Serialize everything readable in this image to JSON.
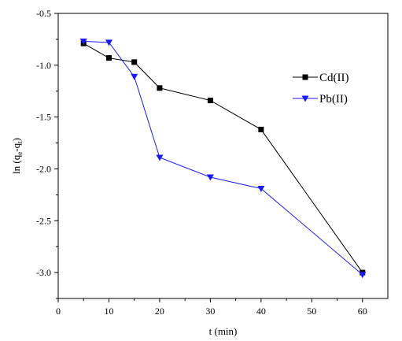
{
  "chart_data": {
    "type": "line",
    "xlabel": "t (min)",
    "ylabel": {
      "prefix": "ln (q",
      "sub1": "e",
      "mid": "-q",
      "sub2": "t",
      "suffix": ")"
    },
    "xlim": [
      0,
      65
    ],
    "ylim": [
      -3.25,
      -0.5
    ],
    "xticks": [
      0,
      10,
      20,
      30,
      40,
      50,
      60
    ],
    "yticks": [
      -0.5,
      -1.0,
      -1.5,
      -2.0,
      -2.5,
      -3.0
    ],
    "ytick_labels": [
      "-0.5",
      "-1.0",
      "-1.5",
      "-2.0",
      "-2.5",
      "-3.0"
    ],
    "grid": false,
    "legend_position": "top-right",
    "series": [
      {
        "name": "Cd(II)",
        "color": "#000000",
        "marker": "square",
        "x": [
          5,
          10,
          15,
          20,
          30,
          40,
          60
        ],
        "y": [
          -0.79,
          -0.93,
          -0.97,
          -1.22,
          -1.34,
          -1.62,
          -3.0
        ]
      },
      {
        "name": "Pb(II)",
        "color": "#1a1aff",
        "marker": "triangle-down",
        "x": [
          5,
          10,
          15,
          20,
          30,
          40,
          60
        ],
        "y": [
          -0.77,
          -0.78,
          -1.11,
          -1.89,
          -2.08,
          -2.19,
          -3.02
        ]
      }
    ]
  }
}
